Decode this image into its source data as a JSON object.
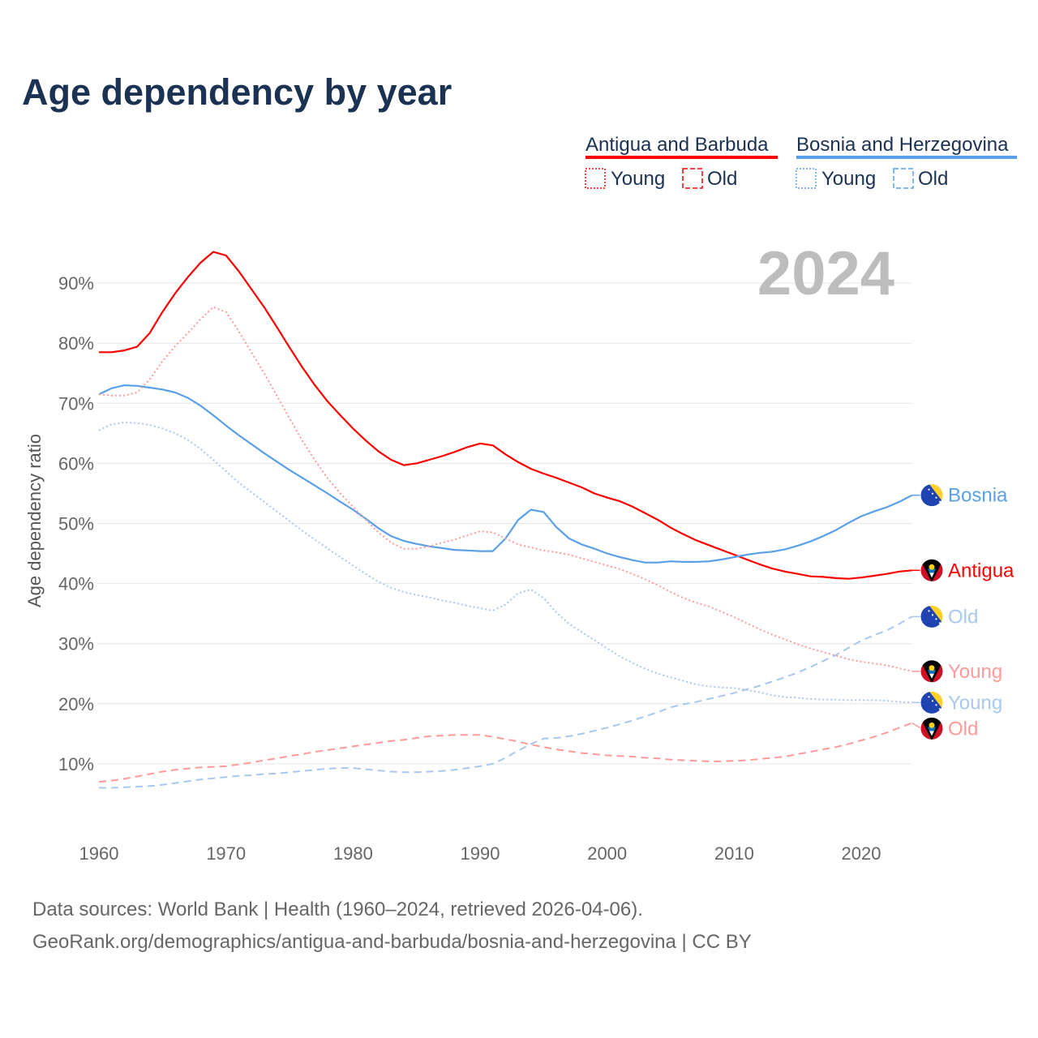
{
  "title": "Age dependency by year",
  "legend": {
    "groups": [
      {
        "name": "Antigua and Barbuda",
        "color": "#ff0000",
        "young": "Young",
        "old": "Old",
        "light": "#ff9a9a"
      },
      {
        "name": "Bosnia and Herzegovina",
        "color": "#5aa0e8",
        "young": "Young",
        "old": "Old",
        "light": "#a8c8f0"
      }
    ]
  },
  "year_badge": "2024",
  "source": {
    "line1": "Data sources: World Bank | Health (1960–2024, retrieved 2026-04-06).",
    "line2": "GeoRank.org/demographics/antigua-and-barbuda/bosnia-and-herzegovina | CC BY"
  },
  "chart_data": {
    "type": "line",
    "title": "Age dependency by year",
    "xlabel": "",
    "ylabel": "Age dependency ratio",
    "xlim": [
      1960,
      2024
    ],
    "ylim": [
      0,
      100
    ],
    "xticks": [
      1960,
      1970,
      1980,
      1990,
      2000,
      2010,
      2020
    ],
    "xtick_labels": [
      "1960",
      "1970",
      "1980",
      "1990",
      "2000",
      "2010",
      "2020"
    ],
    "yticks": [
      10,
      20,
      30,
      40,
      50,
      60,
      70,
      80,
      90
    ],
    "ytick_labels": [
      "10%",
      "20%",
      "30%",
      "40%",
      "50%",
      "60%",
      "70%",
      "80%",
      "90%"
    ],
    "grid": true,
    "legend_position": "top-right",
    "series": [
      {
        "name": "Antigua and Barbuda",
        "end_label": "Antigua",
        "flag": "antigua",
        "color": "#ff0000",
        "style": "solid",
        "x_start": 1960,
        "values": [
          78.5,
          78.5,
          78.8,
          79.4,
          81.7,
          85.2,
          88.3,
          91.0,
          93.4,
          95.2,
          94.6,
          92.0,
          89.0,
          86.0,
          82.7,
          79.3,
          76.0,
          73.0,
          70.3,
          68.0,
          65.8,
          63.8,
          62.0,
          60.6,
          59.7,
          60.0,
          60.6,
          61.2,
          61.9,
          62.7,
          63.3,
          63.0,
          61.5,
          60.2,
          59.1,
          58.3,
          57.6,
          56.8,
          56.0,
          55.0,
          54.3,
          53.7,
          52.8,
          51.7,
          50.6,
          49.3,
          48.2,
          47.2,
          46.4,
          45.6,
          44.8,
          44.0,
          43.2,
          42.5,
          42.0,
          41.6,
          41.2,
          41.1,
          40.9,
          40.8,
          41.0,
          41.3,
          41.6,
          42.0,
          42.2
        ]
      },
      {
        "name": "Bosnia and Herzegovina",
        "end_label": "Bosnia",
        "flag": "bosnia",
        "color": "#5aa0e8",
        "style": "solid",
        "x_start": 1960,
        "values": [
          71.5,
          72.5,
          73.0,
          72.9,
          72.6,
          72.3,
          71.8,
          70.9,
          69.6,
          68.0,
          66.3,
          64.7,
          63.2,
          61.7,
          60.3,
          58.9,
          57.6,
          56.3,
          55.0,
          53.6,
          52.3,
          50.8,
          49.2,
          47.9,
          47.1,
          46.6,
          46.2,
          45.9,
          45.6,
          45.5,
          45.4,
          45.4,
          47.5,
          50.6,
          52.3,
          51.9,
          49.4,
          47.5,
          46.5,
          45.8,
          45.0,
          44.4,
          43.9,
          43.5,
          43.5,
          43.7,
          43.6,
          43.6,
          43.7,
          44.0,
          44.4,
          44.8,
          45.1,
          45.3,
          45.7,
          46.3,
          47.0,
          47.9,
          48.9,
          50.1,
          51.2,
          52.0,
          52.7,
          53.6,
          54.7
        ]
      },
      {
        "name": "Antigua and Barbuda – Young",
        "end_label": "Young",
        "flag": "antigua",
        "color": "#ff9a9a",
        "style": "dotted",
        "x_start": 1960,
        "values": [
          71.5,
          71.3,
          71.3,
          71.8,
          74.0,
          77.0,
          79.5,
          81.7,
          84.0,
          86.0,
          85.2,
          82.0,
          78.5,
          75.0,
          71.3,
          67.5,
          63.8,
          60.5,
          57.5,
          55.0,
          52.8,
          50.6,
          48.5,
          46.8,
          45.8,
          45.8,
          46.2,
          46.8,
          47.3,
          48.0,
          48.7,
          48.5,
          47.5,
          46.5,
          46.0,
          45.5,
          45.2,
          44.8,
          44.2,
          43.6,
          43.0,
          42.4,
          41.6,
          40.7,
          39.7,
          38.6,
          37.6,
          36.8,
          36.2,
          35.3,
          34.4,
          33.4,
          32.4,
          31.5,
          30.7,
          29.9,
          29.2,
          28.6,
          28.0,
          27.4,
          27.0,
          26.7,
          26.4,
          25.9,
          25.4
        ]
      },
      {
        "name": "Bosnia and Herzegovina – Young",
        "end_label": "Young",
        "flag": "bosnia",
        "color": "#a8c8f0",
        "style": "dotted",
        "x_start": 1960,
        "values": [
          65.5,
          66.5,
          66.8,
          66.7,
          66.4,
          65.8,
          65.0,
          63.9,
          62.4,
          60.6,
          58.7,
          56.8,
          55.2,
          53.6,
          52.0,
          50.4,
          48.8,
          47.3,
          45.8,
          44.4,
          43.0,
          41.6,
          40.3,
          39.3,
          38.6,
          38.1,
          37.7,
          37.2,
          36.8,
          36.3,
          35.9,
          35.5,
          36.5,
          38.4,
          39.0,
          37.6,
          35.2,
          33.3,
          31.9,
          30.6,
          29.2,
          27.9,
          26.8,
          25.8,
          25.0,
          24.4,
          23.8,
          23.2,
          22.9,
          22.7,
          22.6,
          22.3,
          21.9,
          21.4,
          21.1,
          21.0,
          20.8,
          20.7,
          20.7,
          20.6,
          20.6,
          20.6,
          20.5,
          20.3,
          20.2
        ]
      },
      {
        "name": "Antigua and Barbuda – Old",
        "end_label": "Old",
        "flag": "antigua",
        "color": "#ff9a9a",
        "style": "dashed",
        "x_start": 1960,
        "values": [
          7.0,
          7.2,
          7.5,
          7.9,
          8.3,
          8.7,
          9.0,
          9.2,
          9.4,
          9.5,
          9.6,
          9.9,
          10.2,
          10.6,
          10.9,
          11.3,
          11.6,
          12.0,
          12.3,
          12.6,
          12.9,
          13.2,
          13.5,
          13.8,
          14.0,
          14.3,
          14.6,
          14.7,
          14.8,
          14.8,
          14.8,
          14.5,
          14.1,
          13.7,
          13.2,
          12.8,
          12.4,
          12.1,
          11.8,
          11.6,
          11.4,
          11.3,
          11.2,
          11.0,
          10.9,
          10.7,
          10.6,
          10.5,
          10.4,
          10.4,
          10.5,
          10.6,
          10.8,
          11.0,
          11.2,
          11.6,
          12.0,
          12.4,
          12.8,
          13.3,
          13.9,
          14.5,
          15.2,
          16.0,
          16.8
        ]
      },
      {
        "name": "Bosnia and Herzegovina – Old",
        "end_label": "Old",
        "flag": "bosnia",
        "color": "#a8c8f0",
        "style": "dashed",
        "x_start": 1960,
        "values": [
          6.0,
          6.0,
          6.1,
          6.2,
          6.3,
          6.5,
          6.8,
          7.1,
          7.4,
          7.6,
          7.8,
          8.0,
          8.1,
          8.3,
          8.4,
          8.6,
          8.8,
          9.0,
          9.2,
          9.3,
          9.3,
          9.1,
          8.9,
          8.7,
          8.6,
          8.6,
          8.7,
          8.8,
          9.0,
          9.3,
          9.6,
          10.0,
          11.0,
          12.2,
          13.3,
          14.2,
          14.3,
          14.6,
          15.0,
          15.5,
          16.0,
          16.6,
          17.2,
          17.9,
          18.6,
          19.4,
          19.9,
          20.3,
          20.8,
          21.3,
          21.8,
          22.4,
          23.0,
          23.7,
          24.4,
          25.2,
          26.1,
          27.1,
          28.1,
          29.3,
          30.5,
          31.4,
          32.2,
          33.3,
          34.5
        ]
      }
    ]
  }
}
